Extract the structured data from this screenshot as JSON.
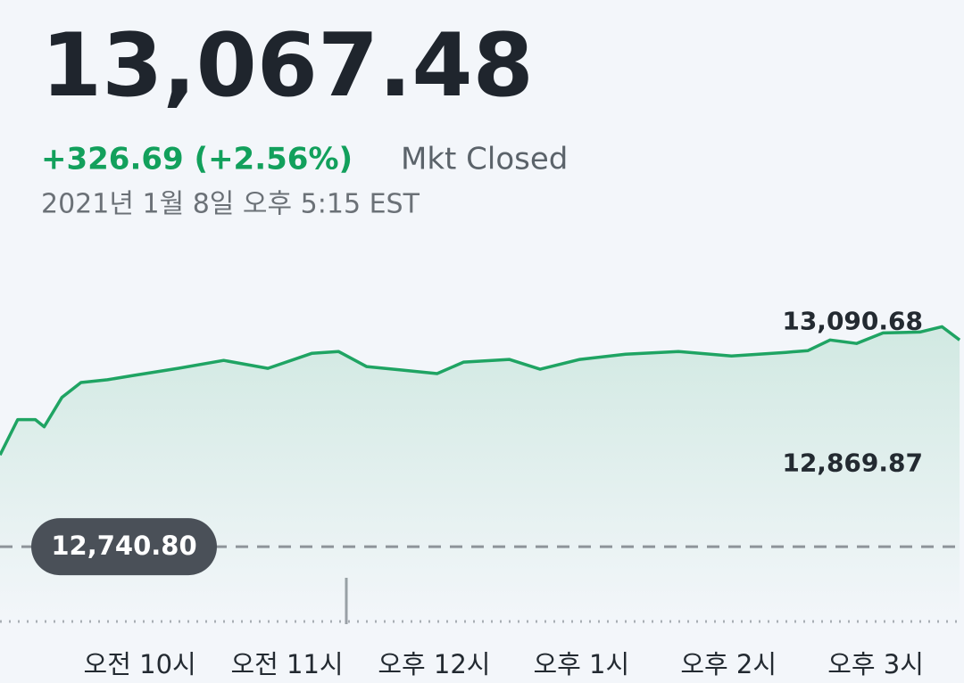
{
  "header": {
    "price": "13,067.48",
    "change": "+326.69 (+2.56%)",
    "status": "Mkt Closed",
    "timestamp": "2021년 1월 8일 오후 5:15 EST"
  },
  "chart_data": {
    "type": "line",
    "color": "#1fa463",
    "x": [
      9.05,
      9.17,
      9.29,
      9.35,
      9.47,
      9.6,
      9.78,
      9.96,
      10.26,
      10.57,
      10.87,
      11.17,
      11.35,
      11.54,
      11.78,
      12.02,
      12.2,
      12.51,
      12.72,
      12.99,
      13.3,
      13.66,
      14.02,
      14.39,
      14.54,
      14.69,
      14.87,
      15.05,
      15.3,
      15.45,
      15.57
    ],
    "values": [
      12883.7,
      12938.9,
      12938.9,
      12927.8,
      12973.4,
      12996.8,
      13001.0,
      13007.9,
      13018.9,
      13031.3,
      13018.9,
      13042.4,
      13045.1,
      13021.7,
      13016.2,
      13010.6,
      13028.6,
      13032.7,
      13017.5,
      13032.7,
      13041.0,
      13045.1,
      13038.2,
      13043.8,
      13046.5,
      13063.1,
      13057.6,
      13074.1,
      13075.5,
      13083.8,
      13063.1
    ],
    "xlim": [
      9.05,
      15.6
    ],
    "xticks": [
      {
        "value": 10,
        "label": "오전 10시"
      },
      {
        "value": 11,
        "label": "오전 11시"
      },
      {
        "value": 12,
        "label": "오후 12시"
      },
      {
        "value": 13,
        "label": "오후 1시"
      },
      {
        "value": 14,
        "label": "오후 2시"
      },
      {
        "value": 15,
        "label": "오후 3시"
      }
    ],
    "ylim": [
      12620,
      13190
    ],
    "yticks": [
      {
        "value": 13090.68,
        "label": "13,090.68"
      },
      {
        "value": 12869.87,
        "label": "12,869.87"
      }
    ],
    "reference_line": {
      "value": 12740.8,
      "label": "12,740.80"
    }
  }
}
